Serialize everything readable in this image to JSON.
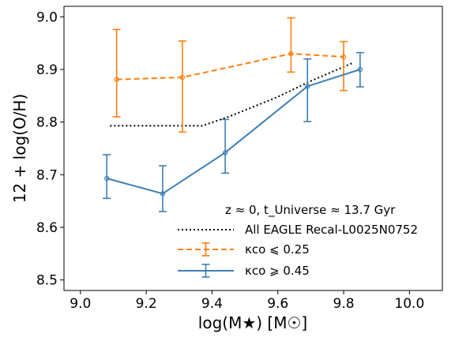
{
  "chart_data": {
    "type": "line",
    "xlabel": "log(M★) [M☉]",
    "ylabel": "12 + log(O/H)",
    "xlim": [
      8.95,
      10.1
    ],
    "ylim": [
      8.48,
      9.02
    ],
    "xticks": [
      "9.0",
      "9.2",
      "9.4",
      "9.6",
      "9.8",
      "10.0"
    ],
    "yticks": [
      "8.5",
      "8.6",
      "8.7",
      "8.8",
      "8.9",
      "9.0"
    ],
    "annotation": "z ≈ 0,  t_Universe ≈ 13.7 Gyr",
    "legend_position": "lower-right",
    "series": [
      {
        "name": "All EAGLE Recal-L0025N0752",
        "style": "dotted",
        "color": "#000000",
        "x": [
          9.09,
          9.37,
          9.45,
          9.6,
          9.7,
          9.83
        ],
        "y": [
          8.793,
          8.793,
          8.81,
          8.848,
          8.878,
          8.913
        ]
      },
      {
        "name": "κco ⩽ 0.25",
        "style": "dashed",
        "color": "#ff7f0e",
        "x": [
          9.11,
          9.31,
          9.64,
          9.8
        ],
        "y": [
          8.881,
          8.885,
          8.93,
          8.924
        ],
        "err_low": [
          8.81,
          8.781,
          8.895,
          8.86
        ],
        "err_high": [
          8.976,
          8.954,
          8.998,
          8.953
        ]
      },
      {
        "name": "κco ⩾ 0.45",
        "style": "solid",
        "color": "#3d7fb5",
        "x": [
          9.08,
          9.25,
          9.44,
          9.69,
          9.85
        ],
        "y": [
          8.693,
          8.664,
          8.742,
          8.868,
          8.9
        ],
        "err_low": [
          8.655,
          8.63,
          8.703,
          8.801,
          8.867
        ],
        "err_high": [
          8.738,
          8.717,
          8.805,
          8.92,
          8.932
        ]
      }
    ]
  }
}
